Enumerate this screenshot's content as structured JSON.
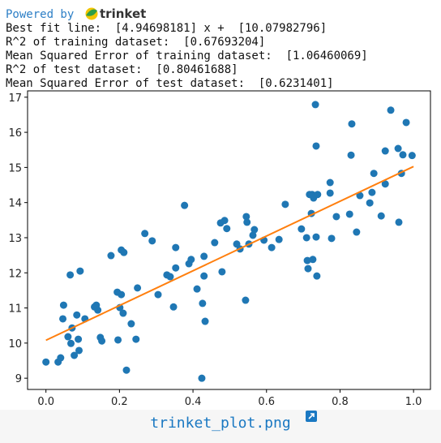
{
  "header": {
    "powered_by": "Powered by",
    "logo": "trinket"
  },
  "output": [
    "Best fit line:  [4.94698181] x +  [10.07982796]",
    "R^2 of training dataset:  [0.67693204]",
    "Mean Squared Error of training dataset:  [1.06460069]",
    "R^2 of test dataset:  [0.80461688]",
    "Mean Squared Error of test dataset:  [0.6231401]"
  ],
  "chart_data": {
    "type": "scatter",
    "xlim": [
      -0.05,
      1.046
    ],
    "ylim": [
      8.68,
      17.18
    ],
    "xticks": [
      {
        "value": 0,
        "label": "0.0"
      },
      0.2,
      0.4,
      0.6,
      0.8,
      {
        "value": 1,
        "label": "1.0"
      }
    ],
    "yticks": [
      9,
      10,
      11,
      12,
      13,
      14,
      15,
      16,
      17
    ],
    "series": [
      {
        "type": "scatter",
        "color": "#1f77b4",
        "x": [
          0.0,
          0.033,
          0.04,
          0.046,
          0.048,
          0.06,
          0.066,
          0.068,
          0.071,
          0.077,
          0.084,
          0.088,
          0.09,
          0.093,
          0.106,
          0.132,
          0.141,
          0.148,
          0.152,
          0.137,
          0.177,
          0.194,
          0.201,
          0.205,
          0.205,
          0.212,
          0.196,
          0.21,
          0.219,
          0.232,
          0.245,
          0.249,
          0.269,
          0.289,
          0.305,
          0.329,
          0.338,
          0.347,
          0.353,
          0.353,
          0.377,
          0.389,
          0.395,
          0.411,
          0.424,
          0.426,
          0.43,
          0.433,
          0.43,
          0.459,
          0.475,
          0.486,
          0.492,
          0.479,
          0.519,
          0.528,
          0.543,
          0.545,
          0.547,
          0.552,
          0.563,
          0.567,
          0.593,
          0.614,
          0.634,
          0.651,
          0.695,
          0.709,
          0.711,
          0.713,
          0.717,
          0.722,
          0.724,
          0.726,
          0.728,
          0.733,
          0.735,
          0.735,
          0.737,
          0.739,
          0.773,
          0.773,
          0.777,
          0.79,
          0.826,
          0.83,
          0.832,
          0.845,
          0.854,
          0.881,
          0.887,
          0.892,
          0.912,
          0.923,
          0.923,
          0.938,
          0.958,
          0.96,
          0.967,
          0.971,
          0.98,
          0.996
        ],
        "values": [
          9.46,
          9.46,
          9.58,
          10.69,
          11.08,
          10.18,
          11.94,
          9.99,
          10.43,
          9.65,
          10.8,
          10.11,
          9.79,
          12.05,
          10.69,
          11.03,
          10.94,
          10.16,
          10.06,
          11.08,
          12.49,
          11.45,
          11.01,
          11.38,
          12.65,
          12.58,
          10.09,
          10.85,
          9.23,
          10.55,
          10.11,
          11.57,
          13.12,
          12.91,
          11.38,
          11.94,
          11.89,
          11.03,
          12.14,
          12.72,
          13.92,
          12.26,
          12.38,
          11.54,
          9.0,
          11.13,
          11.91,
          10.62,
          12.47,
          12.86,
          13.42,
          13.49,
          13.26,
          12.03,
          12.82,
          12.68,
          11.22,
          13.6,
          13.44,
          12.82,
          13.07,
          13.23,
          12.93,
          12.72,
          12.95,
          13.95,
          13.25,
          13.0,
          12.35,
          12.12,
          14.23,
          13.69,
          14.23,
          12.38,
          14.13,
          16.79,
          15.61,
          13.02,
          11.91,
          14.23,
          14.57,
          14.27,
          12.98,
          13.6,
          13.67,
          15.35,
          16.24,
          13.16,
          14.2,
          13.99,
          14.29,
          14.83,
          13.62,
          15.47,
          14.53,
          16.63,
          15.54,
          13.44,
          14.83,
          15.36,
          16.28,
          15.34
        ]
      },
      {
        "type": "line",
        "color": "#ff7f0e",
        "x": [
          0,
          1
        ],
        "values": [
          10.07982796,
          15.02680977
        ]
      }
    ]
  },
  "footer": {
    "link": "trinket_plot.png"
  }
}
